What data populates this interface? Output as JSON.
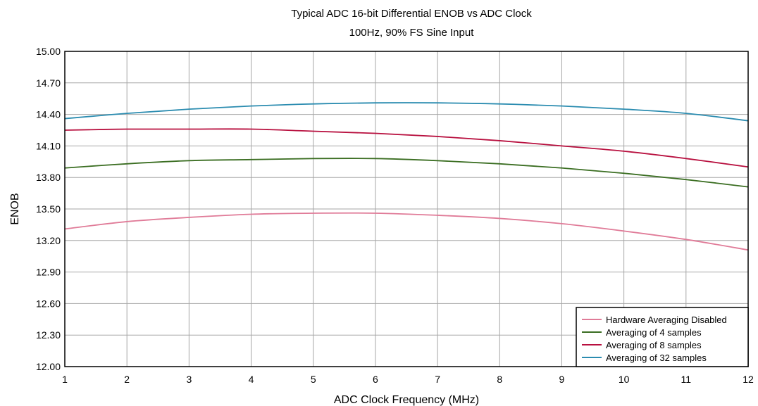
{
  "chart_data": {
    "type": "line",
    "title": "Typical ADC 16-bit Differential ENOB vs ADC Clock",
    "subtitle": "100Hz, 90% FS Sine Input",
    "xlabel": "ADC Clock Frequency (MHz)",
    "ylabel": "ENOB",
    "xlim": [
      1,
      12
    ],
    "ylim": [
      12.0,
      15.0
    ],
    "x_ticks": [
      "1",
      "2",
      "3",
      "4",
      "5",
      "6",
      "7",
      "8",
      "9",
      "10",
      "11",
      "12"
    ],
    "y_ticks": [
      "12.00",
      "12.30",
      "12.60",
      "12.90",
      "13.20",
      "13.50",
      "13.80",
      "14.10",
      "14.40",
      "14.70",
      "15.00"
    ],
    "grid": true,
    "legend_position": "bottom-right",
    "x": [
      1,
      2,
      3,
      4,
      5,
      6,
      7,
      8,
      9,
      10,
      11,
      12
    ],
    "series": [
      {
        "name": "Hardware Averaging Disabled",
        "color": "#e07b98",
        "values": [
          13.31,
          13.38,
          13.42,
          13.45,
          13.46,
          13.46,
          13.44,
          13.41,
          13.36,
          13.29,
          13.21,
          13.11
        ]
      },
      {
        "name": "Averaging of 4 samples",
        "color": "#3b6e22",
        "values": [
          13.89,
          13.93,
          13.96,
          13.97,
          13.98,
          13.98,
          13.96,
          13.93,
          13.89,
          13.84,
          13.78,
          13.71
        ]
      },
      {
        "name": "Averaging of 8 samples",
        "color": "#b8103f",
        "values": [
          14.25,
          14.26,
          14.26,
          14.26,
          14.24,
          14.22,
          14.19,
          14.15,
          14.1,
          14.05,
          13.98,
          13.9
        ]
      },
      {
        "name": "Averaging of 32 samples",
        "color": "#2b8cb0",
        "values": [
          14.36,
          14.41,
          14.45,
          14.48,
          14.5,
          14.51,
          14.51,
          14.5,
          14.48,
          14.45,
          14.41,
          14.34
        ]
      }
    ]
  }
}
